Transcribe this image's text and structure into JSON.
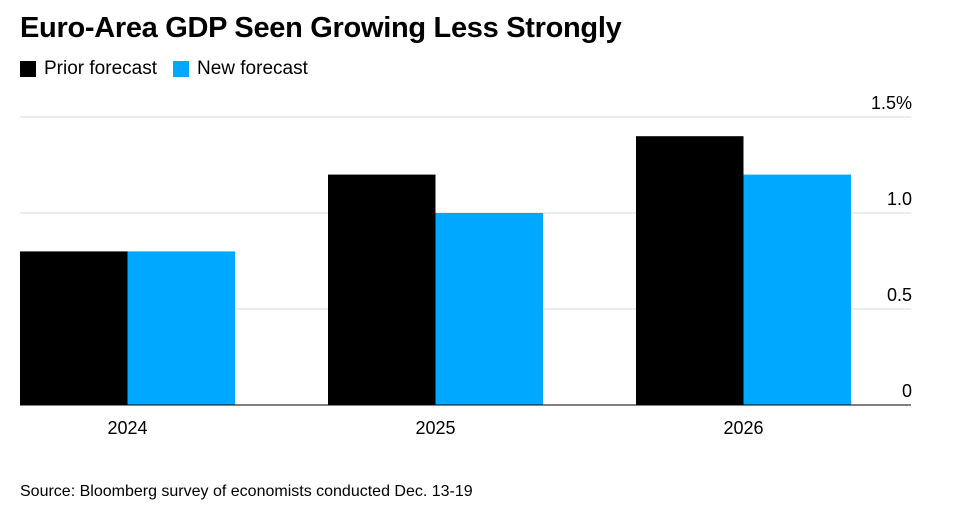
{
  "chart_data": {
    "type": "bar",
    "title": "Euro-Area GDP Seen Growing Less Strongly",
    "categories": [
      "2024",
      "2025",
      "2026"
    ],
    "series": [
      {
        "name": "Prior forecast",
        "color": "#000000",
        "values": [
          0.8,
          1.2,
          1.4
        ]
      },
      {
        "name": "New forecast",
        "color": "#00a8ff",
        "values": [
          0.8,
          1.0,
          1.2
        ]
      }
    ],
    "yticks": [
      "0",
      "0.5",
      "1.0",
      "1.5%"
    ],
    "ytick_values": [
      0,
      0.5,
      1.0,
      1.5
    ],
    "ylim": [
      0,
      1.5
    ],
    "xlabel": "",
    "ylabel": "",
    "grid": true,
    "legend_position": "top-left",
    "y_axis_side": "right"
  },
  "source": "Source: Bloomberg survey of economists conducted Dec. 13-19"
}
